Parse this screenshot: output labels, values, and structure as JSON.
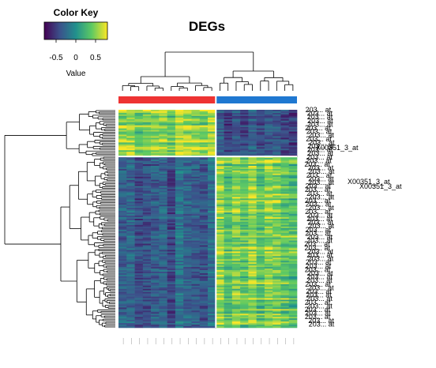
{
  "chart_data": {
    "type": "heatmap",
    "title": "DEGs",
    "color_key": {
      "title": "Color Key",
      "xlabel": "Value",
      "range": [
        -0.8,
        0.8
      ],
      "ticks": [
        -0.5,
        0,
        0.5
      ],
      "tick_labels": [
        "-0.5",
        "0",
        "0.5"
      ],
      "palette": [
        "#440154",
        "#3b528b",
        "#21908d",
        "#5dc963",
        "#fde725"
      ]
    },
    "column_groups": [
      {
        "count": 12,
        "color": "#ee3333"
      },
      {
        "count": 10,
        "color": "#1f78d1"
      }
    ],
    "cluster_a_rows": 30,
    "cluster_b_rows": 110,
    "cluster_a_level": {
      "group1": 0.55,
      "group2": -0.35
    },
    "cluster_b_level": {
      "group1": -0.3,
      "group2": 0.5
    },
    "row_labels": [
      "203... at",
      "X00351_3_at",
      "X00351_3_at"
    ]
  }
}
